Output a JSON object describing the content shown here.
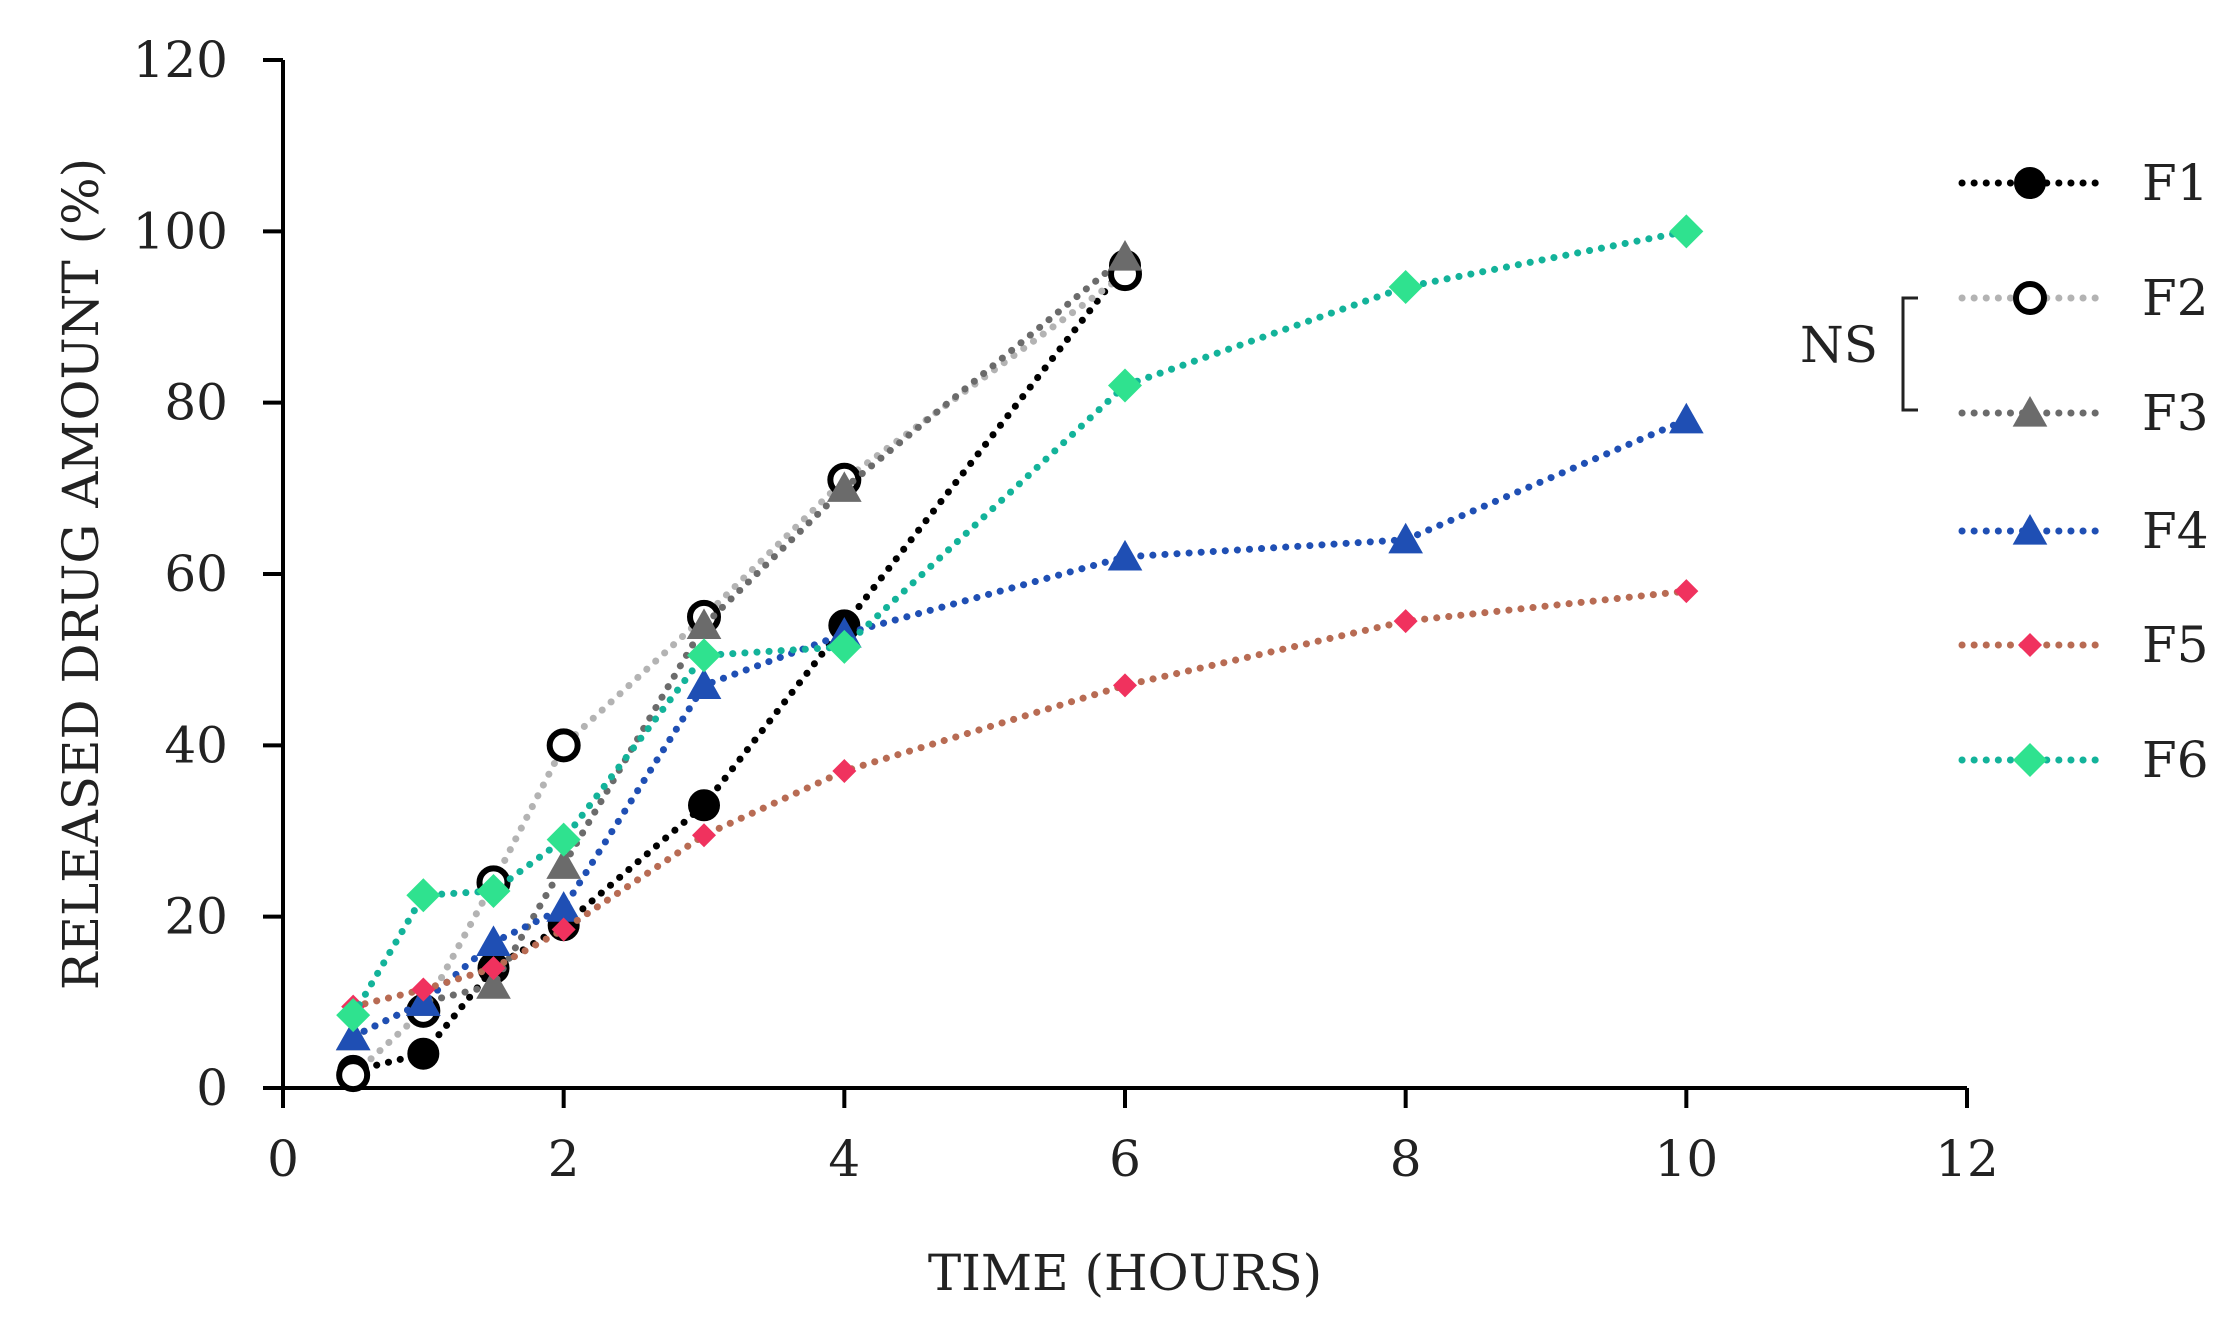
{
  "chart_data": {
    "type": "line",
    "title": "",
    "xlabel": "TIME (HOURS)",
    "ylabel": "RELEASED DRUG AMOUNT (%)",
    "xlim": [
      0,
      12
    ],
    "ylim": [
      0,
      120
    ],
    "xticks": [
      0,
      2,
      4,
      6,
      8,
      10,
      12
    ],
    "yticks": [
      0,
      20,
      40,
      60,
      80,
      100,
      120
    ],
    "grid": false,
    "legend_position": "right",
    "annotation": {
      "text": "NS",
      "brackets": [
        "F2",
        "F3"
      ]
    },
    "series": [
      {
        "name": "F1",
        "color": "#000000",
        "marker": "circle-filled",
        "x": [
          0.5,
          1,
          1.5,
          2,
          3,
          4,
          6
        ],
        "y": [
          2,
          4,
          14,
          19,
          33,
          54,
          96
        ]
      },
      {
        "name": "F2",
        "color": "#b3b3b3",
        "marker": "circle-open",
        "x": [
          0.5,
          1,
          1.5,
          2,
          3,
          4,
          6
        ],
        "y": [
          1.5,
          9,
          24,
          40,
          55,
          71,
          95
        ]
      },
      {
        "name": "F3",
        "color": "#6b6b6b",
        "marker": "triangle",
        "x": [
          0.5,
          1,
          1.5,
          2,
          3,
          4,
          6
        ],
        "y": [
          6,
          10,
          12,
          26,
          54,
          70,
          97
        ]
      },
      {
        "name": "F4",
        "color": "#1f4fb4",
        "marker": "triangle",
        "x": [
          0.5,
          1,
          1.5,
          2,
          3,
          4,
          6,
          8,
          10
        ],
        "y": [
          6,
          10,
          17,
          21,
          47,
          53,
          62,
          64,
          78
        ]
      },
      {
        "name": "F5",
        "color": "#b86b53",
        "markerColor": "#f0325e",
        "marker": "diamond-small",
        "x": [
          0.5,
          1,
          1.5,
          2,
          3,
          4,
          6,
          8,
          10
        ],
        "y": [
          9.5,
          11.5,
          14,
          18.5,
          29.5,
          37,
          47,
          54.5,
          58
        ]
      },
      {
        "name": "F6",
        "color": "#13b39a",
        "markerColor": "#2fe28f",
        "marker": "diamond",
        "x": [
          0.5,
          1,
          1.5,
          2,
          3,
          4,
          6,
          8,
          10
        ],
        "y": [
          8.5,
          22.5,
          23,
          29,
          50.5,
          51.5,
          82,
          93.5,
          100
        ]
      }
    ]
  }
}
